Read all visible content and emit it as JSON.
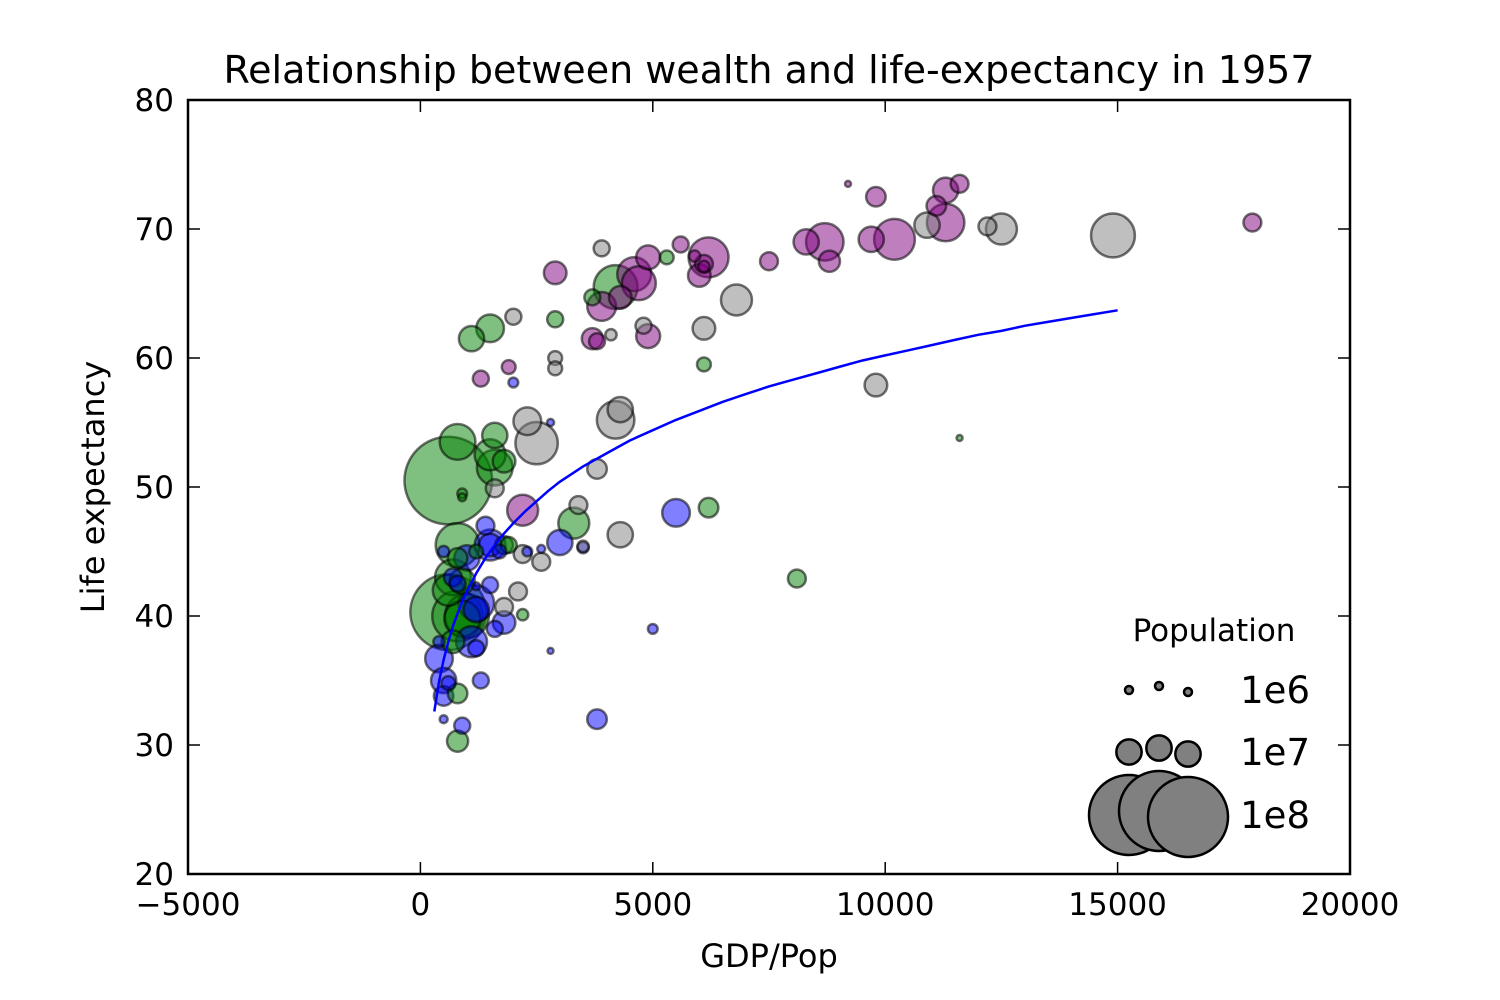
{
  "chart_data": {
    "type": "scatter",
    "title": "Relationship between wealth and life-expectancy in 1957",
    "xlabel": "GDP/Pop",
    "ylabel": "Life expectancy",
    "xlim": [
      -5000,
      20000
    ],
    "ylim": [
      20,
      80
    ],
    "xticks": [
      -5000,
      0,
      5000,
      10000,
      15000,
      20000
    ],
    "xtick_labels": [
      "−5000",
      "0",
      "5000",
      "10000",
      "15000",
      "20000"
    ],
    "yticks": [
      20,
      30,
      40,
      50,
      60,
      70,
      80
    ],
    "ytick_labels": [
      "20",
      "30",
      "40",
      "50",
      "60",
      "70",
      "80"
    ],
    "grid": false,
    "colors": {
      "blue": "#0000ff",
      "green": "#008000",
      "purple": "#800080",
      "gray": "#808080",
      "fit_line": "#0000ff"
    },
    "series": [
      {
        "color": "blue",
        "points": [
          [
            500,
            45,
            2000000.0
          ],
          [
            1000,
            44.5,
            10000000.0
          ],
          [
            1500,
            45.5,
            15000000.0
          ],
          [
            1700,
            45,
            3000000.0
          ],
          [
            2300,
            45,
            1500000.0
          ],
          [
            2600,
            45.2,
            1000000.0
          ],
          [
            1400,
            47,
            5000000.0
          ],
          [
            3000,
            45.7,
            10000000.0
          ],
          [
            3500,
            45.3,
            2000000.0
          ],
          [
            5500,
            48,
            12000000.0
          ],
          [
            800,
            42.5,
            4000000.0
          ],
          [
            1200,
            42.3,
            1000000.0
          ],
          [
            1500,
            42.4,
            4000000.0
          ],
          [
            1200,
            40.5,
            10000000.0
          ],
          [
            1600,
            39,
            4000000.0
          ],
          [
            1800,
            39.5,
            8000000.0
          ],
          [
            1100,
            38,
            15000000.0
          ],
          [
            1200,
            37.5,
            4000000.0
          ],
          [
            400,
            38,
            2000000.0
          ],
          [
            400,
            36.7,
            12000000.0
          ],
          [
            500,
            35,
            10000000.0
          ],
          [
            600,
            34.8,
            3000000.0
          ],
          [
            500,
            33.8,
            6000000.0
          ],
          [
            1300,
            35,
            4000000.0
          ],
          [
            900,
            31.5,
            4000000.0
          ],
          [
            3800,
            32,
            6000000.0
          ],
          [
            500,
            32,
            1000000.0
          ],
          [
            5000,
            39,
            1500000.0
          ],
          [
            2800,
            37.3,
            500000.0
          ],
          [
            2000,
            58.1,
            1500000.0
          ],
          [
            2800,
            55,
            800000.0
          ],
          [
            1500,
            45.5,
            8000000.0
          ],
          [
            1200,
            41,
            20000000.0
          ],
          [
            700,
            43,
            5000000.0
          ]
        ]
      },
      {
        "color": "green",
        "points": [
          [
            600,
            50.5,
            120000000.0
          ],
          [
            800,
            53.5,
            20000000.0
          ],
          [
            1600,
            54,
            10000000.0
          ],
          [
            1500,
            52.5,
            15000000.0
          ],
          [
            1600,
            51.5,
            20000000.0
          ],
          [
            1800,
            52,
            8000000.0
          ],
          [
            900,
            49.5,
            1500000.0
          ],
          [
            900,
            49.2,
            1000000.0
          ],
          [
            800,
            45.5,
            30000000.0
          ],
          [
            600,
            42,
            15000000.0
          ],
          [
            700,
            43,
            20000000.0
          ],
          [
            900,
            42.7,
            10000000.0
          ],
          [
            600,
            40.3,
            90000000.0
          ],
          [
            800,
            40,
            40000000.0
          ],
          [
            900,
            39.8,
            20000000.0
          ],
          [
            1000,
            40,
            30000000.0
          ],
          [
            700,
            38,
            8000000.0
          ],
          [
            800,
            34,
            6000000.0
          ],
          [
            800,
            30.3,
            7000000.0
          ],
          [
            1100,
            61.5,
            10000000.0
          ],
          [
            1500,
            62.3,
            12000000.0
          ],
          [
            2900,
            63,
            4000000.0
          ],
          [
            3700,
            64.7,
            4000000.0
          ],
          [
            4200,
            65.5,
            30000000.0
          ],
          [
            5300,
            67.8,
            3000000.0
          ],
          [
            6100,
            59.5,
            3000000.0
          ],
          [
            3300,
            47.2,
            15000000.0
          ],
          [
            6200,
            48.4,
            6000000.0
          ],
          [
            8100,
            42.9,
            5000000.0
          ],
          [
            11600,
            53.8,
            500000.0
          ],
          [
            1900,
            45.5,
            4000000.0
          ],
          [
            1800,
            45.5,
            5000000.0
          ],
          [
            1200,
            45,
            3000000.0
          ],
          [
            800,
            44.5,
            6000000.0
          ],
          [
            2200,
            40.1,
            2000000.0
          ]
        ]
      },
      {
        "color": "purple",
        "points": [
          [
            9200,
            73.5,
            500000.0
          ],
          [
            9800,
            72.5,
            6000000.0
          ],
          [
            11300,
            73,
            10000000.0
          ],
          [
            11600,
            73.5,
            5000000.0
          ],
          [
            11100,
            71.8,
            6000000.0
          ],
          [
            11300,
            70.5,
            22000000.0
          ],
          [
            17900,
            70.5,
            5000000.0
          ],
          [
            8300,
            69,
            10000000.0
          ],
          [
            8700,
            69,
            22000000.0
          ],
          [
            9700,
            69.2,
            10000000.0
          ],
          [
            10200,
            69.2,
            26000000.0
          ],
          [
            8800,
            67.5,
            7000000.0
          ],
          [
            7500,
            67.5,
            5000000.0
          ],
          [
            6200,
            67.8,
            25000000.0
          ],
          [
            5900,
            67.9,
            2000000.0
          ],
          [
            5600,
            68.8,
            4000000.0
          ],
          [
            6100,
            67.3,
            5000000.0
          ],
          [
            4900,
            67.8,
            9000000.0
          ],
          [
            4600,
            66.5,
            18000000.0
          ],
          [
            4700,
            65.8,
            18000000.0
          ],
          [
            6000,
            66.4,
            8000000.0
          ],
          [
            2900,
            66.6,
            8000000.0
          ],
          [
            3900,
            64,
            13000000.0
          ],
          [
            4300,
            64.7,
            8000000.0
          ],
          [
            4900,
            61.7,
            9000000.0
          ],
          [
            3700,
            61.5,
            7000000.0
          ],
          [
            3800,
            61.3,
            4000000.0
          ],
          [
            1900,
            59.3,
            3000000.0
          ],
          [
            1300,
            58.4,
            4000000.0
          ],
          [
            2200,
            48.2,
            15000000.0
          ],
          [
            6100,
            67.1,
            2000000.0
          ]
        ]
      },
      {
        "color": "gray",
        "points": [
          [
            14900,
            69.5,
            30000000.0
          ],
          [
            12500,
            70,
            15000000.0
          ],
          [
            12200,
            70.2,
            5000000.0
          ],
          [
            10900,
            70.3,
            10000000.0
          ],
          [
            6800,
            64.5,
            15000000.0
          ],
          [
            6100,
            62.3,
            8000000.0
          ],
          [
            4800,
            62.5,
            4000000.0
          ],
          [
            4100,
            61.8,
            2000000.0
          ],
          [
            3900,
            68.5,
            4000000.0
          ],
          [
            2000,
            63.2,
            4000000.0
          ],
          [
            2900,
            60,
            3000000.0
          ],
          [
            2900,
            59.2,
            3000000.0
          ],
          [
            9800,
            57.9,
            8000000.0
          ],
          [
            2500,
            53.4,
            28000000.0
          ],
          [
            2300,
            55.1,
            12000000.0
          ],
          [
            4200,
            55.2,
            22000000.0
          ],
          [
            4300,
            56,
            10000000.0
          ],
          [
            3800,
            51.4,
            6000000.0
          ],
          [
            1600,
            49.9,
            5000000.0
          ],
          [
            3400,
            48.6,
            5000000.0
          ],
          [
            4300,
            46.3,
            10000000.0
          ],
          [
            2200,
            44.8,
            5000000.0
          ],
          [
            2600,
            44.2,
            5000000.0
          ],
          [
            2100,
            41.9,
            5000000.0
          ],
          [
            1800,
            40.7,
            5000000.0
          ],
          [
            3500,
            45.4,
            2000000.0
          ]
        ]
      }
    ],
    "fit_line": {
      "x": [
        300,
        400,
        500,
        600,
        700,
        800,
        900,
        1000,
        1200,
        1400,
        1600,
        1800,
        2000,
        2250,
        2500,
        2750,
        3000,
        3500,
        4000,
        4500,
        5000,
        5500,
        6000,
        6500,
        7000,
        7500,
        8000,
        8500,
        9000,
        9500,
        10000,
        10500,
        11000,
        11500,
        12000,
        12500,
        13000,
        13500,
        14000,
        14500,
        15000
      ],
      "y": [
        32.6,
        34.9,
        36.6,
        38.0,
        39.2,
        40.2,
        41.1,
        41.9,
        43.3,
        44.5,
        45.5,
        46.4,
        47.2,
        48.1,
        48.9,
        49.7,
        50.4,
        51.6,
        52.6,
        53.6,
        54.4,
        55.2,
        55.9,
        56.6,
        57.2,
        57.8,
        58.3,
        58.8,
        59.3,
        59.8,
        60.2,
        60.6,
        61.0,
        61.4,
        61.8,
        62.1,
        62.5,
        62.8,
        63.1,
        63.4,
        63.7
      ]
    },
    "legend": {
      "title": "Population",
      "placement": "lower-right",
      "entries": [
        {
          "label": "1e6",
          "population": 1000000.0
        },
        {
          "label": "1e7",
          "population": 10000000.0
        },
        {
          "label": "1e8",
          "population": 100000000.0
        }
      ]
    }
  }
}
